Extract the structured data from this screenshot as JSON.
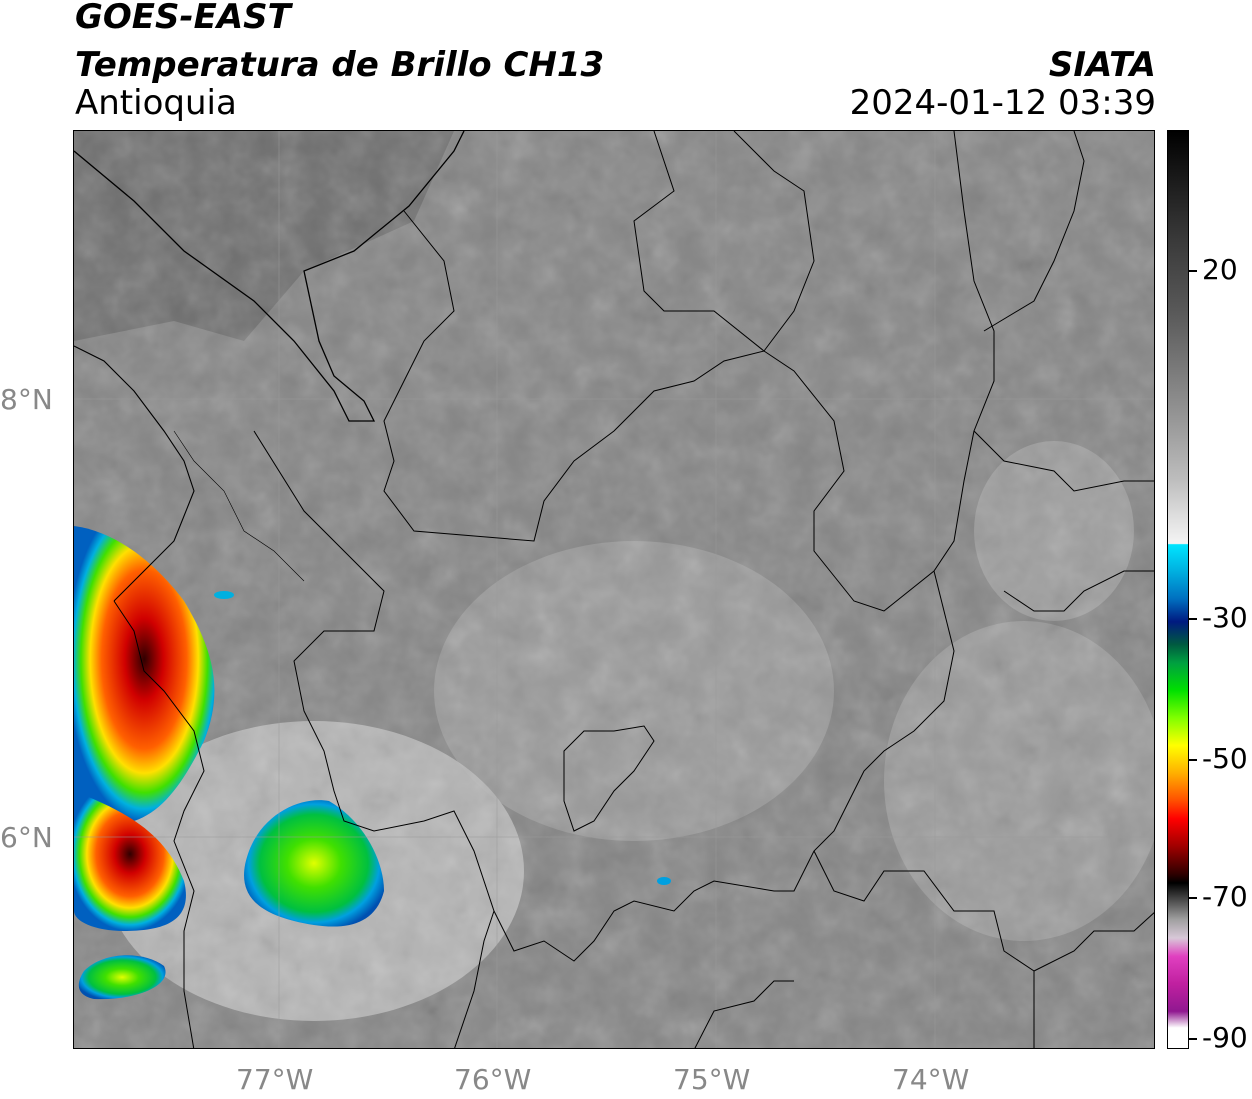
{
  "header": {
    "satellite": "GOES-EAST",
    "product": "Temperatura de Brillo CH13",
    "region": "Antioquia",
    "organization": "SIATA",
    "datetime": "2024-01-12 03:39"
  },
  "map": {
    "lat_labels": [
      "8°N",
      "6°N"
    ],
    "lon_labels": [
      "77°W",
      "76°W",
      "75°W",
      "74°W"
    ]
  },
  "colorbar": {
    "tick_labels": [
      "20",
      "-30",
      "-50",
      "-70",
      "-90"
    ]
  }
}
